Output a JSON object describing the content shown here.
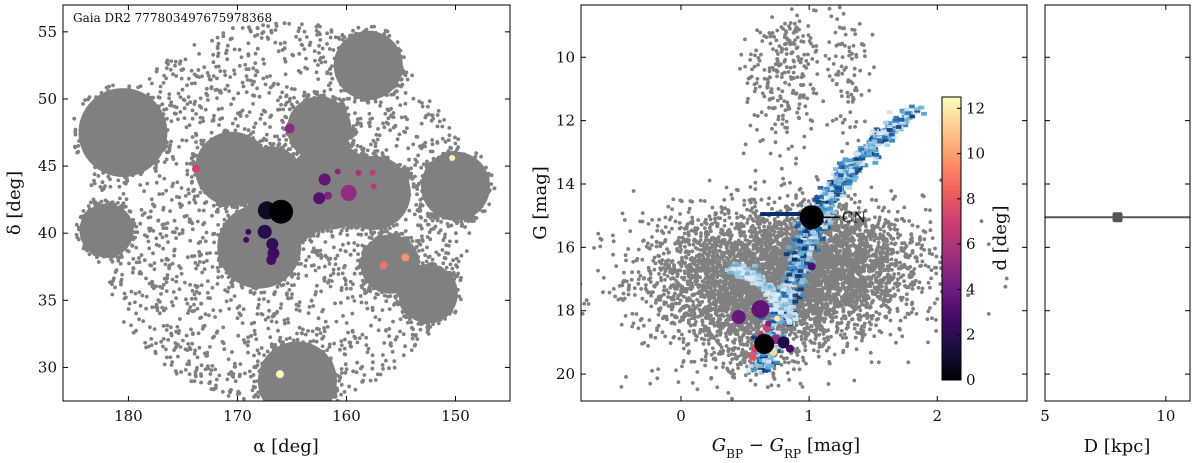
{
  "chart_data": [
    {
      "type": "scatter",
      "panel": "sky",
      "annotation": "Gaia DR2 777803497675978368",
      "xlabel": "α [deg]",
      "ylabel": "δ [deg]",
      "xlim": [
        186,
        145
      ],
      "ylim": [
        27.5,
        57
      ],
      "xticks": [
        180,
        170,
        160,
        150
      ],
      "yticks": [
        30,
        35,
        40,
        45,
        50,
        55
      ],
      "background_field": {
        "center": [
          166,
          41.5
        ],
        "radius_deg": 14.3,
        "color": "#808080"
      },
      "dense_patches": [
        {
          "ra": 180.5,
          "dec": 47.5,
          "r": 3.6
        },
        {
          "ra": 170.5,
          "dec": 44.8,
          "r": 3.0
        },
        {
          "ra": 167.0,
          "dec": 44.0,
          "r": 2.7
        },
        {
          "ra": 162.5,
          "dec": 47.8,
          "r": 2.6
        },
        {
          "ra": 182.0,
          "dec": 40.2,
          "r": 2.2
        },
        {
          "ra": 168.0,
          "dec": 39.0,
          "r": 3.4
        },
        {
          "ra": 164.5,
          "dec": 41.5,
          "r": 2.2
        },
        {
          "ra": 161.5,
          "dec": 43.5,
          "r": 3.5
        },
        {
          "ra": 157.5,
          "dec": 43.0,
          "r": 3.0
        },
        {
          "ra": 158.0,
          "dec": 52.5,
          "r": 2.8
        },
        {
          "ra": 150.0,
          "dec": 43.5,
          "r": 2.8
        },
        {
          "ra": 156.0,
          "dec": 37.7,
          "r": 2.4
        },
        {
          "ra": 152.5,
          "dec": 35.5,
          "r": 2.4
        },
        {
          "ra": 164.5,
          "dec": 29.0,
          "r": 3.2
        }
      ],
      "members": [
        {
          "ra": 166.0,
          "dec": 41.6,
          "d": 0.0,
          "size": 12
        },
        {
          "ra": 167.3,
          "dec": 41.7,
          "d": 0.8,
          "size": 9
        },
        {
          "ra": 167.5,
          "dec": 40.1,
          "d": 1.8,
          "size": 7
        },
        {
          "ra": 166.8,
          "dec": 39.2,
          "d": 2.2,
          "size": 6
        },
        {
          "ra": 166.7,
          "dec": 38.5,
          "d": 2.6,
          "size": 6
        },
        {
          "ra": 166.9,
          "dec": 38.0,
          "d": 2.8,
          "size": 5
        },
        {
          "ra": 169.0,
          "dec": 40.1,
          "d": 2.4,
          "size": 3
        },
        {
          "ra": 169.2,
          "dec": 39.5,
          "d": 2.6,
          "size": 3
        },
        {
          "ra": 162.0,
          "dec": 44.0,
          "d": 3.6,
          "size": 6
        },
        {
          "ra": 162.5,
          "dec": 42.6,
          "d": 3.2,
          "size": 6
        },
        {
          "ra": 161.7,
          "dec": 42.8,
          "d": 4.5,
          "size": 4
        },
        {
          "ra": 160.8,
          "dec": 44.6,
          "d": 4.8,
          "size": 3
        },
        {
          "ra": 159.8,
          "dec": 43.0,
          "d": 5.2,
          "size": 8
        },
        {
          "ra": 158.9,
          "dec": 44.5,
          "d": 5.8,
          "size": 3
        },
        {
          "ra": 157.6,
          "dec": 44.5,
          "d": 6.5,
          "size": 3
        },
        {
          "ra": 157.5,
          "dec": 43.5,
          "d": 6.4,
          "size": 3
        },
        {
          "ra": 165.2,
          "dec": 47.8,
          "d": 5.0,
          "size": 5
        },
        {
          "ra": 173.8,
          "dec": 44.8,
          "d": 7.0,
          "size": 4
        },
        {
          "ra": 156.6,
          "dec": 37.6,
          "d": 8.8,
          "size": 4
        },
        {
          "ra": 154.6,
          "dec": 38.2,
          "d": 9.6,
          "size": 4
        },
        {
          "ra": 150.3,
          "dec": 45.6,
          "d": 12.2,
          "size": 3
        },
        {
          "ra": 166.1,
          "dec": 29.5,
          "d": 12.3,
          "size": 4
        }
      ]
    },
    {
      "type": "scatter",
      "panel": "cmd",
      "xlabel": "GBP − GRP [mag]",
      "xlabel_sub1": "BP",
      "xlabel_sub2": "RP",
      "ylabel": "G [mag]",
      "xlim": [
        -0.78,
        2.7
      ],
      "ylim": [
        20.85,
        8.35
      ],
      "xticks": [
        0,
        1,
        2
      ],
      "yticks": [
        10,
        12,
        14,
        16,
        18,
        20
      ],
      "target_label": "CN",
      "target": {
        "color": 1.02,
        "mag": 15.05
      },
      "field_regions": [
        {
          "color": 0.75,
          "mag": 16.9,
          "sx": 0.5,
          "sy": 1.0
        },
        {
          "color": 1.2,
          "mag": 16.2,
          "sx": 0.3,
          "sy": 0.8
        },
        {
          "color": 0.55,
          "mag": 18.3,
          "sx": 0.3,
          "sy": 1.0
        },
        {
          "color": 0.8,
          "mag": 10.5,
          "sx": 0.15,
          "sy": 1.2
        },
        {
          "color": 1.3,
          "mag": 10.6,
          "sx": 0.08,
          "sy": 1.1
        }
      ],
      "isochrone_model": [
        {
          "x": 0.62,
          "y": 20.0
        },
        {
          "x": 0.66,
          "y": 19.0
        },
        {
          "x": 0.75,
          "y": 18.0
        },
        {
          "x": 0.86,
          "y": 17.0
        },
        {
          "x": 0.92,
          "y": 16.2
        },
        {
          "x": 0.98,
          "y": 15.5
        },
        {
          "x": 1.05,
          "y": 15.0
        },
        {
          "x": 1.12,
          "y": 14.5
        },
        {
          "x": 1.2,
          "y": 14.0
        },
        {
          "x": 1.3,
          "y": 13.5
        },
        {
          "x": 1.45,
          "y": 12.9
        },
        {
          "x": 1.6,
          "y": 12.3
        },
        {
          "x": 1.83,
          "y": 11.5
        }
      ],
      "members": [
        {
          "c": 1.02,
          "g": 16.6,
          "d": 3.0,
          "size": 4
        },
        {
          "c": 0.62,
          "g": 17.95,
          "d": 3.6,
          "size": 9
        },
        {
          "c": 0.45,
          "g": 18.2,
          "d": 3.8,
          "size": 7
        },
        {
          "c": 0.68,
          "g": 18.4,
          "d": 4.5,
          "size": 3
        },
        {
          "c": 0.75,
          "g": 18.25,
          "d": 12.0,
          "size": 3
        },
        {
          "c": 0.67,
          "g": 18.55,
          "d": 7.0,
          "size": 4
        },
        {
          "c": 0.63,
          "g": 18.8,
          "d": 6.2,
          "size": 4
        },
        {
          "c": 0.74,
          "g": 18.9,
          "d": 5.2,
          "size": 5
        },
        {
          "c": 0.8,
          "g": 19.0,
          "d": 1.6,
          "size": 6
        },
        {
          "c": 0.65,
          "g": 19.05,
          "d": 0.0,
          "size": 10
        },
        {
          "c": 0.58,
          "g": 19.2,
          "d": 7.2,
          "size": 4
        },
        {
          "c": 0.56,
          "g": 19.45,
          "d": 7.8,
          "size": 4
        },
        {
          "c": 0.72,
          "g": 19.3,
          "d": 11.5,
          "size": 4
        },
        {
          "c": 0.85,
          "g": 19.2,
          "d": 2.8,
          "size": 4
        }
      ]
    },
    {
      "type": "colorbar",
      "panel": "colorbar",
      "label": "d [deg]",
      "range": [
        0,
        12.5
      ],
      "ticks": [
        0,
        2,
        4,
        6,
        8,
        10,
        12
      ],
      "colormap": [
        "#000004",
        "#180f3e",
        "#450a69",
        "#721f81",
        "#9f2f7f",
        "#cd4071",
        "#f1605d",
        "#fd9567",
        "#feca8d",
        "#fcfdbf"
      ]
    },
    {
      "type": "errorbar",
      "panel": "distance",
      "xlabel": "D [kpc]",
      "xlim": [
        5,
        11
      ],
      "xticks": [
        5,
        10
      ],
      "value": 8.0,
      "interval": [
        5,
        11
      ],
      "y_level": 15.05
    }
  ]
}
